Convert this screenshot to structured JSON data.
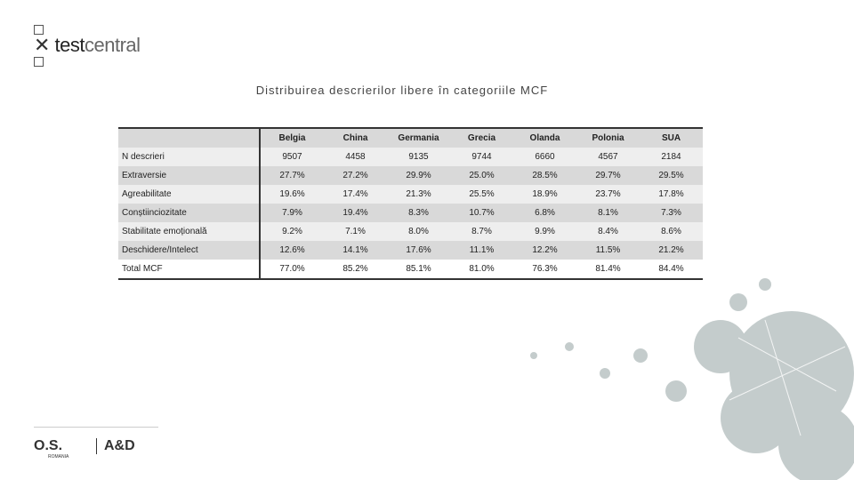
{
  "header": {
    "logo_bold": "test",
    "logo_light": "central"
  },
  "title": "Distribuirea descrierilor libere în categoriile MCF",
  "table": {
    "columns": [
      "Belgia",
      "China",
      "Germania",
      "Grecia",
      "Olanda",
      "Polonia",
      "SUA"
    ],
    "rows": [
      [
        "N descrieri",
        "9507",
        "4458",
        "9135",
        "9744",
        "6660",
        "4567",
        "2184"
      ],
      [
        "Extraversie",
        "27.7%",
        "27.2%",
        "29.9%",
        "25.0%",
        "28.5%",
        "29.7%",
        "29.5%"
      ],
      [
        "Agreabilitate",
        "19.6%",
        "17.4%",
        "21.3%",
        "25.5%",
        "18.9%",
        "23.7%",
        "17.8%"
      ],
      [
        "Conștiinciozitate",
        "7.9%",
        "19.4%",
        "8.3%",
        "10.7%",
        "6.8%",
        "8.1%",
        "7.3%"
      ],
      [
        "Stabilitate emoțională",
        "9.2%",
        "7.1%",
        "8.0%",
        "8.7%",
        "9.9%",
        "8.4%",
        "8.6%"
      ],
      [
        "Deschidere/Intelect",
        "12.6%",
        "14.1%",
        "17.6%",
        "11.1%",
        "12.2%",
        "11.5%",
        "21.2%"
      ],
      [
        "Total MCF",
        "77.0%",
        "85.2%",
        "85.1%",
        "81.0%",
        "76.3%",
        "81.4%",
        "84.4%"
      ]
    ]
  },
  "footer": {
    "logo1": "O.S.",
    "logo1_sub": "ROMANIA",
    "logo2": "A&D"
  }
}
